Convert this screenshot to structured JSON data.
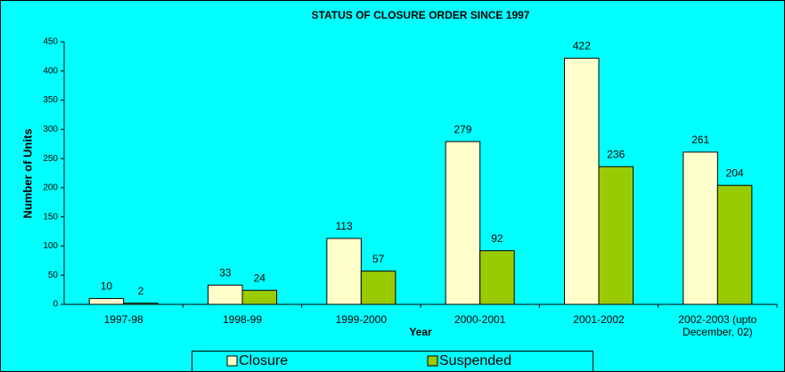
{
  "chart_data": {
    "type": "bar",
    "title": "STATUS OF CLOSURE ORDER SINCE 1997",
    "x_label": "Year",
    "y_label": "Number of Units",
    "categories": [
      "1997-98",
      "1998-99",
      "1999-2000",
      "2000-2001",
      "2001-2002",
      "2002-2003 (upto December, 02)"
    ],
    "series": [
      {
        "name": "Closure",
        "color": "#ffffcc",
        "values": [
          10,
          33,
          113,
          279,
          422,
          261
        ]
      },
      {
        "name": "Suspended",
        "color": "#99cc00",
        "values": [
          2,
          24,
          57,
          92,
          236,
          204
        ]
      }
    ],
    "ylim": [
      0,
      450
    ],
    "yticks": [
      0,
      50,
      100,
      150,
      200,
      250,
      300,
      350,
      400,
      450
    ],
    "legend": "bottom",
    "grid": false
  }
}
